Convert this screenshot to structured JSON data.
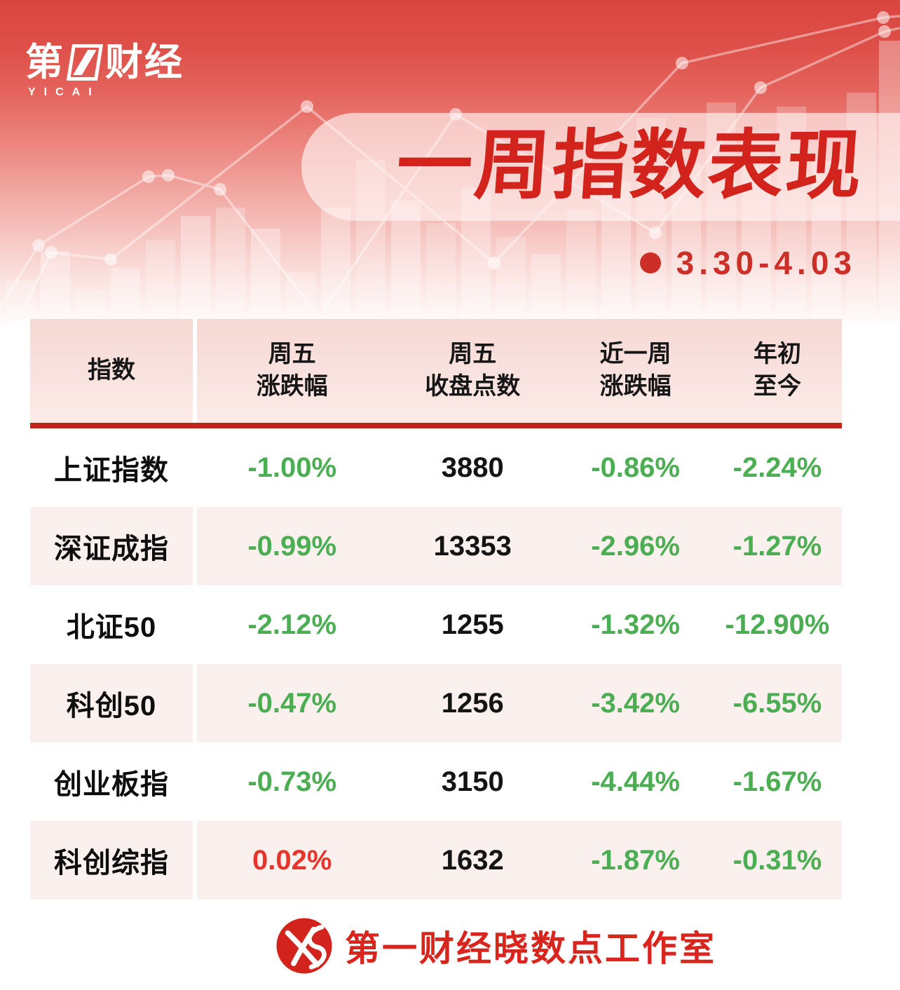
{
  "brand": {
    "char_first": "第",
    "one": "1",
    "char_rest": "财经",
    "subtext": "YICAI"
  },
  "header": {
    "title": "一周指数表现",
    "date_range": "3.30-4.03"
  },
  "chart_data": {
    "type": "table",
    "title": "一周指数表现",
    "period": "3.30-4.03",
    "columns": [
      "指数",
      "周五\n涨跌幅",
      "周五\n收盘点数",
      "近一周\n涨跌幅",
      "年初\n至今"
    ],
    "rows": [
      [
        "上证指数",
        "-1.00%",
        "3880",
        "-0.86%",
        "-2.24%"
      ],
      [
        "深证成指",
        "-0.99%",
        "13353",
        "-2.96%",
        "-1.27%"
      ],
      [
        "北证50",
        "-2.12%",
        "1255",
        "-1.32%",
        "-12.90%"
      ],
      [
        "科创50",
        "-0.47%",
        "1256",
        "-3.42%",
        "-6.55%"
      ],
      [
        "创业板指",
        "-0.73%",
        "3150",
        "-4.44%",
        "-1.67%"
      ],
      [
        "科创综指",
        "0.02%",
        "1632",
        "-1.87%",
        "-0.31%"
      ]
    ],
    "value_colors": {
      "positive": "#e8352b",
      "negative": "#4cae53",
      "neutral": "#141414"
    }
  },
  "footer": {
    "studio": "第一财经晓数点工作室"
  },
  "colors": {
    "accent_red": "#d2241c",
    "divider_red": "#c0241a",
    "row_pink": "#faf1ef",
    "header_pink": "#f6d8d4",
    "up_red": "#e8352b",
    "down_green": "#4cae53"
  }
}
